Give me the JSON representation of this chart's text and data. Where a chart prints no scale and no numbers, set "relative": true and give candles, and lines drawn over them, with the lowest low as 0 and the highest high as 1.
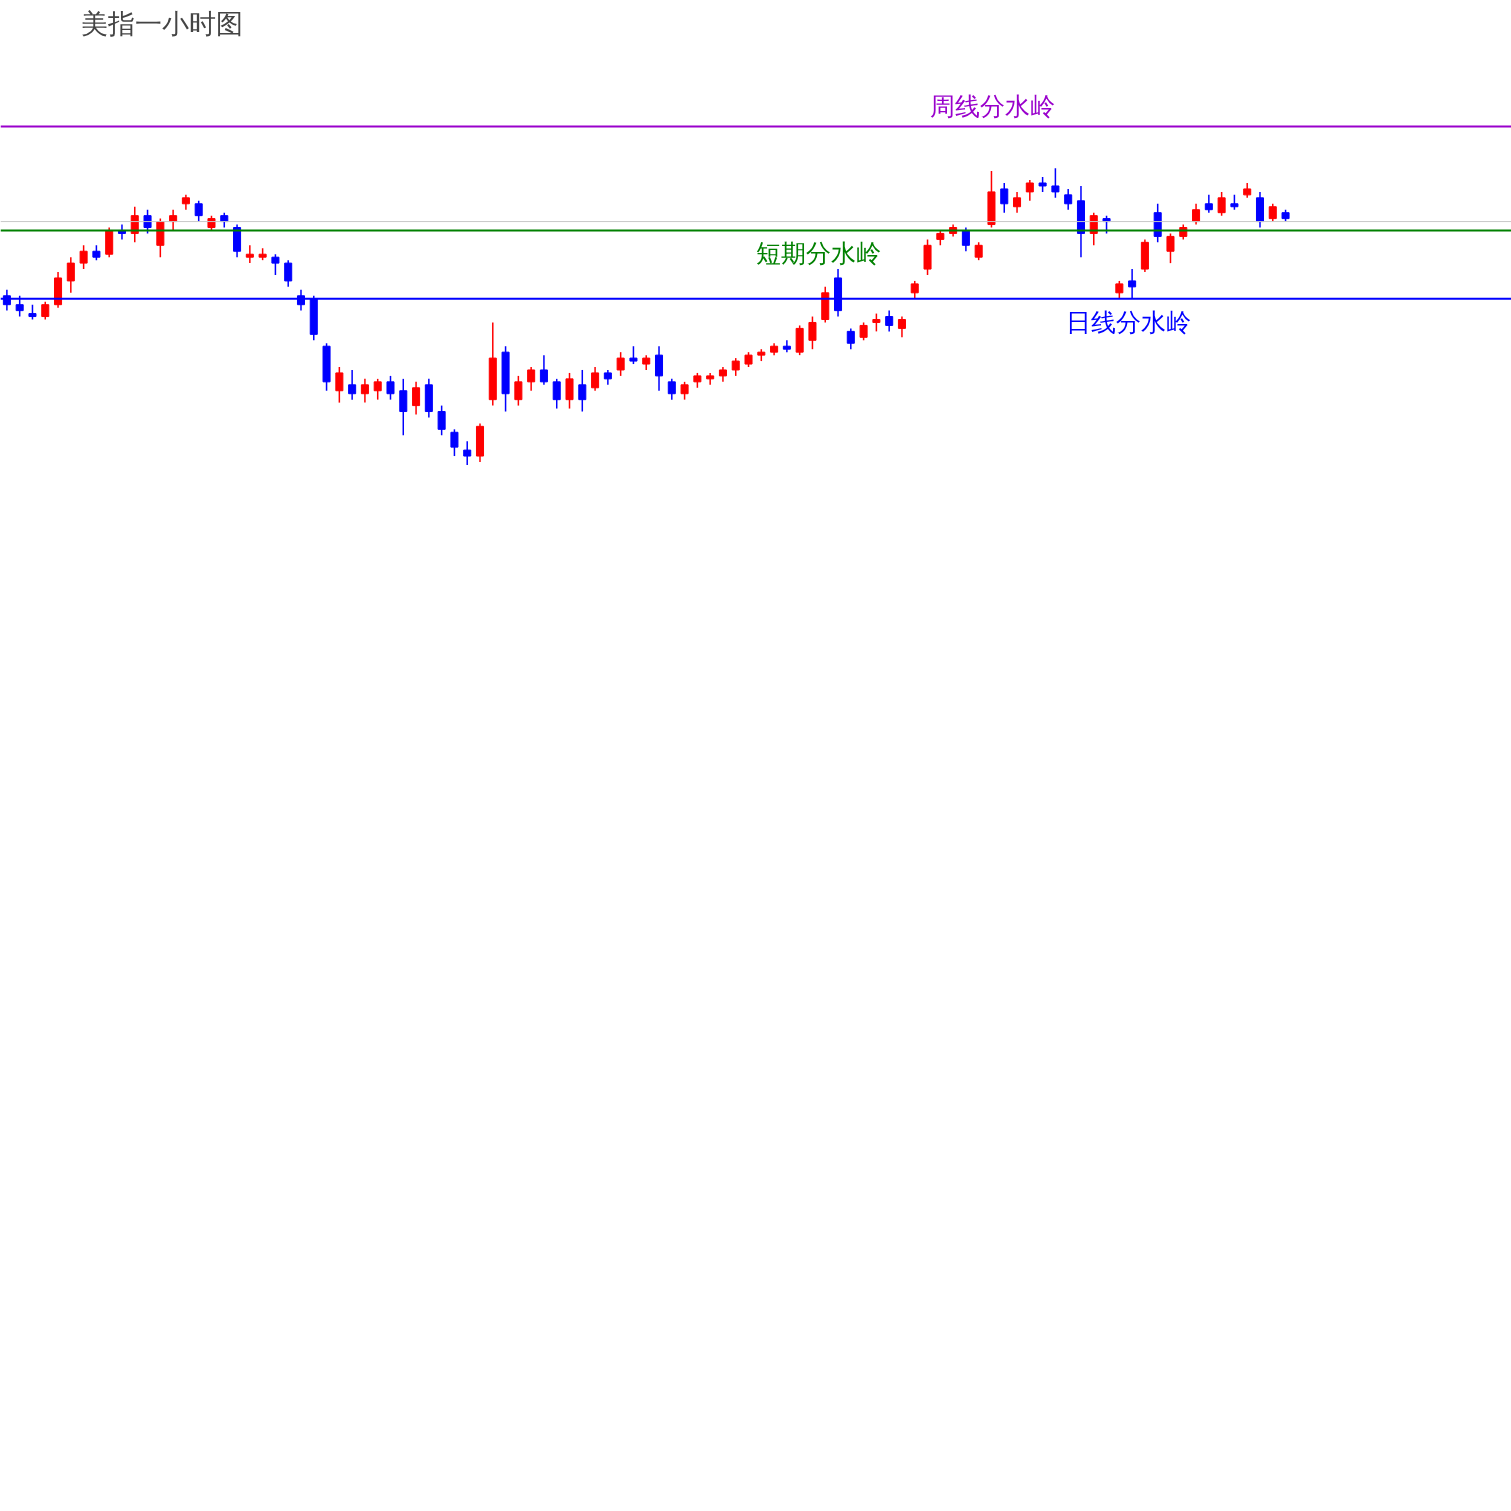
{
  "chart_data": {
    "type": "candlestick",
    "title": "美指一小时图",
    "relative": true,
    "categories": [
      null,
      null,
      null,
      null,
      null,
      null,
      null,
      null,
      null,
      null,
      null,
      null,
      null,
      null,
      null,
      null,
      null,
      null,
      null,
      null,
      null,
      null,
      null,
      null,
      null,
      null,
      null,
      null,
      null,
      null,
      null,
      null,
      null,
      null,
      null,
      null,
      null,
      null,
      null,
      null,
      null,
      null,
      null,
      null,
      null,
      null,
      null,
      null,
      null,
      null,
      null,
      null,
      null,
      null,
      null,
      null,
      null,
      null,
      null,
      null,
      null,
      null,
      null,
      null,
      null,
      null,
      null,
      null,
      null,
      null,
      null,
      null,
      null,
      null,
      null,
      null,
      null,
      null,
      null,
      null,
      null,
      null,
      null,
      null,
      null,
      null,
      null,
      null,
      null,
      null,
      null,
      null,
      null,
      null,
      null,
      null,
      null,
      null,
      null,
      null,
      null
    ],
    "ohlc": [
      [
        0.57,
        0.59,
        0.52,
        0.54
      ],
      [
        0.54,
        0.57,
        0.5,
        0.52
      ],
      [
        0.51,
        0.54,
        0.49,
        0.5
      ],
      [
        0.5,
        0.55,
        0.49,
        0.54
      ],
      [
        0.54,
        0.65,
        0.53,
        0.63
      ],
      [
        0.62,
        0.7,
        0.58,
        0.68
      ],
      [
        0.68,
        0.74,
        0.66,
        0.72
      ],
      [
        0.72,
        0.74,
        0.69,
        0.7
      ],
      [
        0.71,
        0.8,
        0.7,
        0.79
      ],
      [
        0.79,
        0.81,
        0.76,
        0.78
      ],
      [
        0.78,
        0.87,
        0.75,
        0.84
      ],
      [
        0.84,
        0.86,
        0.78,
        0.8
      ],
      [
        0.74,
        0.83,
        0.7,
        0.82
      ],
      [
        0.82,
        0.86,
        0.79,
        0.84
      ],
      [
        0.88,
        0.91,
        0.86,
        0.9
      ],
      [
        0.88,
        0.89,
        0.82,
        0.84
      ],
      [
        0.8,
        0.84,
        0.79,
        0.83
      ],
      [
        0.84,
        0.85,
        0.8,
        0.82
      ],
      [
        0.8,
        0.81,
        0.7,
        0.72
      ],
      [
        0.7,
        0.74,
        0.68,
        0.71
      ],
      [
        0.7,
        0.73,
        0.69,
        0.71
      ],
      [
        0.7,
        0.71,
        0.64,
        0.68
      ],
      [
        0.68,
        0.69,
        0.6,
        0.62
      ],
      [
        0.57,
        0.59,
        0.52,
        0.54
      ],
      [
        0.56,
        0.57,
        0.42,
        0.44
      ],
      [
        0.4,
        0.41,
        0.25,
        0.28
      ],
      [
        0.25,
        0.33,
        0.21,
        0.31
      ],
      [
        0.27,
        0.32,
        0.22,
        0.24
      ],
      [
        0.24,
        0.29,
        0.21,
        0.27
      ],
      [
        0.25,
        0.29,
        0.22,
        0.28
      ],
      [
        0.28,
        0.3,
        0.22,
        0.24
      ],
      [
        0.25,
        0.29,
        0.1,
        0.18
      ],
      [
        0.2,
        0.28,
        0.17,
        0.26
      ],
      [
        0.27,
        0.29,
        0.16,
        0.18
      ],
      [
        0.18,
        0.2,
        0.1,
        0.12
      ],
      [
        0.11,
        0.12,
        0.03,
        0.06
      ],
      [
        0.05,
        0.08,
        0.0,
        0.03
      ],
      [
        0.03,
        0.14,
        0.01,
        0.13
      ],
      [
        0.22,
        0.48,
        0.2,
        0.36
      ],
      [
        0.38,
        0.4,
        0.18,
        0.24
      ],
      [
        0.22,
        0.3,
        0.2,
        0.28
      ],
      [
        0.28,
        0.33,
        0.25,
        0.32
      ],
      [
        0.32,
        0.37,
        0.27,
        0.28
      ],
      [
        0.28,
        0.29,
        0.19,
        0.22
      ],
      [
        0.22,
        0.31,
        0.19,
        0.29
      ],
      [
        0.27,
        0.32,
        0.18,
        0.22
      ],
      [
        0.26,
        0.33,
        0.25,
        0.31
      ],
      [
        0.31,
        0.32,
        0.27,
        0.29
      ],
      [
        0.32,
        0.38,
        0.3,
        0.36
      ],
      [
        0.36,
        0.4,
        0.34,
        0.35
      ],
      [
        0.34,
        0.37,
        0.32,
        0.36
      ],
      [
        0.37,
        0.4,
        0.25,
        0.3
      ],
      [
        0.28,
        0.29,
        0.22,
        0.24
      ],
      [
        0.24,
        0.28,
        0.22,
        0.27
      ],
      [
        0.28,
        0.31,
        0.26,
        0.3
      ],
      [
        0.29,
        0.31,
        0.27,
        0.3
      ],
      [
        0.3,
        0.33,
        0.28,
        0.32
      ],
      [
        0.32,
        0.36,
        0.3,
        0.35
      ],
      [
        0.34,
        0.38,
        0.33,
        0.37
      ],
      [
        0.37,
        0.39,
        0.35,
        0.38
      ],
      [
        0.38,
        0.41,
        0.37,
        0.4
      ],
      [
        0.4,
        0.42,
        0.38,
        0.39
      ],
      [
        0.38,
        0.47,
        0.37,
        0.46
      ],
      [
        0.42,
        0.5,
        0.39,
        0.48
      ],
      [
        0.49,
        0.6,
        0.48,
        0.58
      ],
      [
        0.63,
        0.66,
        0.5,
        0.52
      ],
      [
        0.45,
        0.46,
        0.39,
        0.41
      ],
      [
        0.43,
        0.48,
        0.42,
        0.47
      ],
      [
        0.48,
        0.51,
        0.45,
        0.49
      ],
      [
        0.5,
        0.52,
        0.45,
        0.47
      ],
      [
        0.46,
        0.5,
        0.43,
        0.49
      ],
      [
        0.58,
        0.62,
        0.56,
        0.61
      ],
      [
        0.66,
        0.76,
        0.64,
        0.74
      ],
      [
        0.76,
        0.79,
        0.74,
        0.78
      ],
      [
        0.78,
        0.81,
        0.77,
        0.8
      ],
      [
        0.79,
        0.8,
        0.72,
        0.74
      ],
      [
        0.7,
        0.75,
        0.69,
        0.74
      ],
      [
        0.81,
        0.99,
        0.8,
        0.92
      ],
      [
        0.93,
        0.95,
        0.85,
        0.88
      ],
      [
        0.87,
        0.92,
        0.85,
        0.9
      ],
      [
        0.92,
        0.96,
        0.89,
        0.95
      ],
      [
        0.95,
        0.97,
        0.92,
        0.94
      ],
      [
        0.94,
        1.0,
        0.9,
        0.92
      ],
      [
        0.91,
        0.93,
        0.86,
        0.88
      ],
      [
        0.89,
        0.94,
        0.7,
        0.78
      ],
      [
        0.78,
        0.85,
        0.74,
        0.84
      ],
      [
        0.83,
        0.84,
        0.78,
        0.82
      ],
      [
        0.58,
        0.62,
        0.56,
        0.61
      ],
      [
        0.62,
        0.66,
        0.56,
        0.6
      ],
      [
        0.66,
        0.76,
        0.65,
        0.75
      ],
      [
        0.85,
        0.88,
        0.75,
        0.77
      ],
      [
        0.72,
        0.78,
        0.68,
        0.77
      ],
      [
        0.77,
        0.81,
        0.76,
        0.8
      ],
      [
        0.82,
        0.88,
        0.81,
        0.86
      ],
      [
        0.88,
        0.91,
        0.85,
        0.86
      ],
      [
        0.85,
        0.92,
        0.84,
        0.9
      ],
      [
        0.88,
        0.91,
        0.86,
        0.87
      ],
      [
        0.91,
        0.95,
        0.9,
        0.93
      ],
      [
        0.9,
        0.92,
        0.8,
        0.82
      ],
      [
        0.83,
        0.88,
        0.82,
        0.87
      ],
      [
        0.85,
        0.86,
        0.82,
        0.83
      ]
    ],
    "colors": [
      "#0000ff",
      "#0000ff",
      "#0000ff",
      "#ff0000",
      "#ff0000",
      "#ff0000",
      "#ff0000",
      "#0000ff",
      "#ff0000",
      "#0000ff",
      "#ff0000",
      "#0000ff",
      "#ff0000",
      "#ff0000",
      "#ff0000",
      "#0000ff",
      "#ff0000",
      "#0000ff",
      "#0000ff",
      "#ff0000",
      "#ff0000",
      "#0000ff",
      "#0000ff",
      "#0000ff",
      "#0000ff",
      "#0000ff",
      "#ff0000",
      "#0000ff",
      "#ff0000",
      "#ff0000",
      "#0000ff",
      "#0000ff",
      "#ff0000",
      "#0000ff",
      "#0000ff",
      "#0000ff",
      "#0000ff",
      "#ff0000",
      "#ff0000",
      "#0000ff",
      "#ff0000",
      "#ff0000",
      "#0000ff",
      "#0000ff",
      "#ff0000",
      "#0000ff",
      "#ff0000",
      "#0000ff",
      "#ff0000",
      "#0000ff",
      "#ff0000",
      "#0000ff",
      "#0000ff",
      "#ff0000",
      "#ff0000",
      "#ff0000",
      "#ff0000",
      "#ff0000",
      "#ff0000",
      "#ff0000",
      "#ff0000",
      "#0000ff",
      "#ff0000",
      "#ff0000",
      "#ff0000",
      "#0000ff",
      "#0000ff",
      "#ff0000",
      "#ff0000",
      "#0000ff",
      "#ff0000",
      "#ff0000",
      "#ff0000",
      "#ff0000",
      "#ff0000",
      "#0000ff",
      "#ff0000",
      "#ff0000",
      "#0000ff",
      "#ff0000",
      "#ff0000",
      "#0000ff",
      "#0000ff",
      "#0000ff",
      "#0000ff",
      "#ff0000",
      "#0000ff",
      "#ff0000",
      "#0000ff",
      "#ff0000",
      "#0000ff",
      "#ff0000",
      "#ff0000",
      "#ff0000",
      "#0000ff",
      "#ff0000",
      "#0000ff",
      "#ff0000",
      "#0000ff",
      "#ff0000",
      "#0000ff"
    ],
    "ref_lines": [
      {
        "axis": "y",
        "value": 1.14,
        "label": "周线分水岭",
        "color": "#9900cc"
      },
      {
        "axis": "y",
        "value": 0.82,
        "color": "#c8c8c8"
      },
      {
        "axis": "y",
        "value": 0.79,
        "label": "短期分水岭",
        "color": "#008000"
      },
      {
        "axis": "y",
        "value": 0.56,
        "label": "日线分水岭",
        "color": "#0000ff"
      }
    ]
  }
}
